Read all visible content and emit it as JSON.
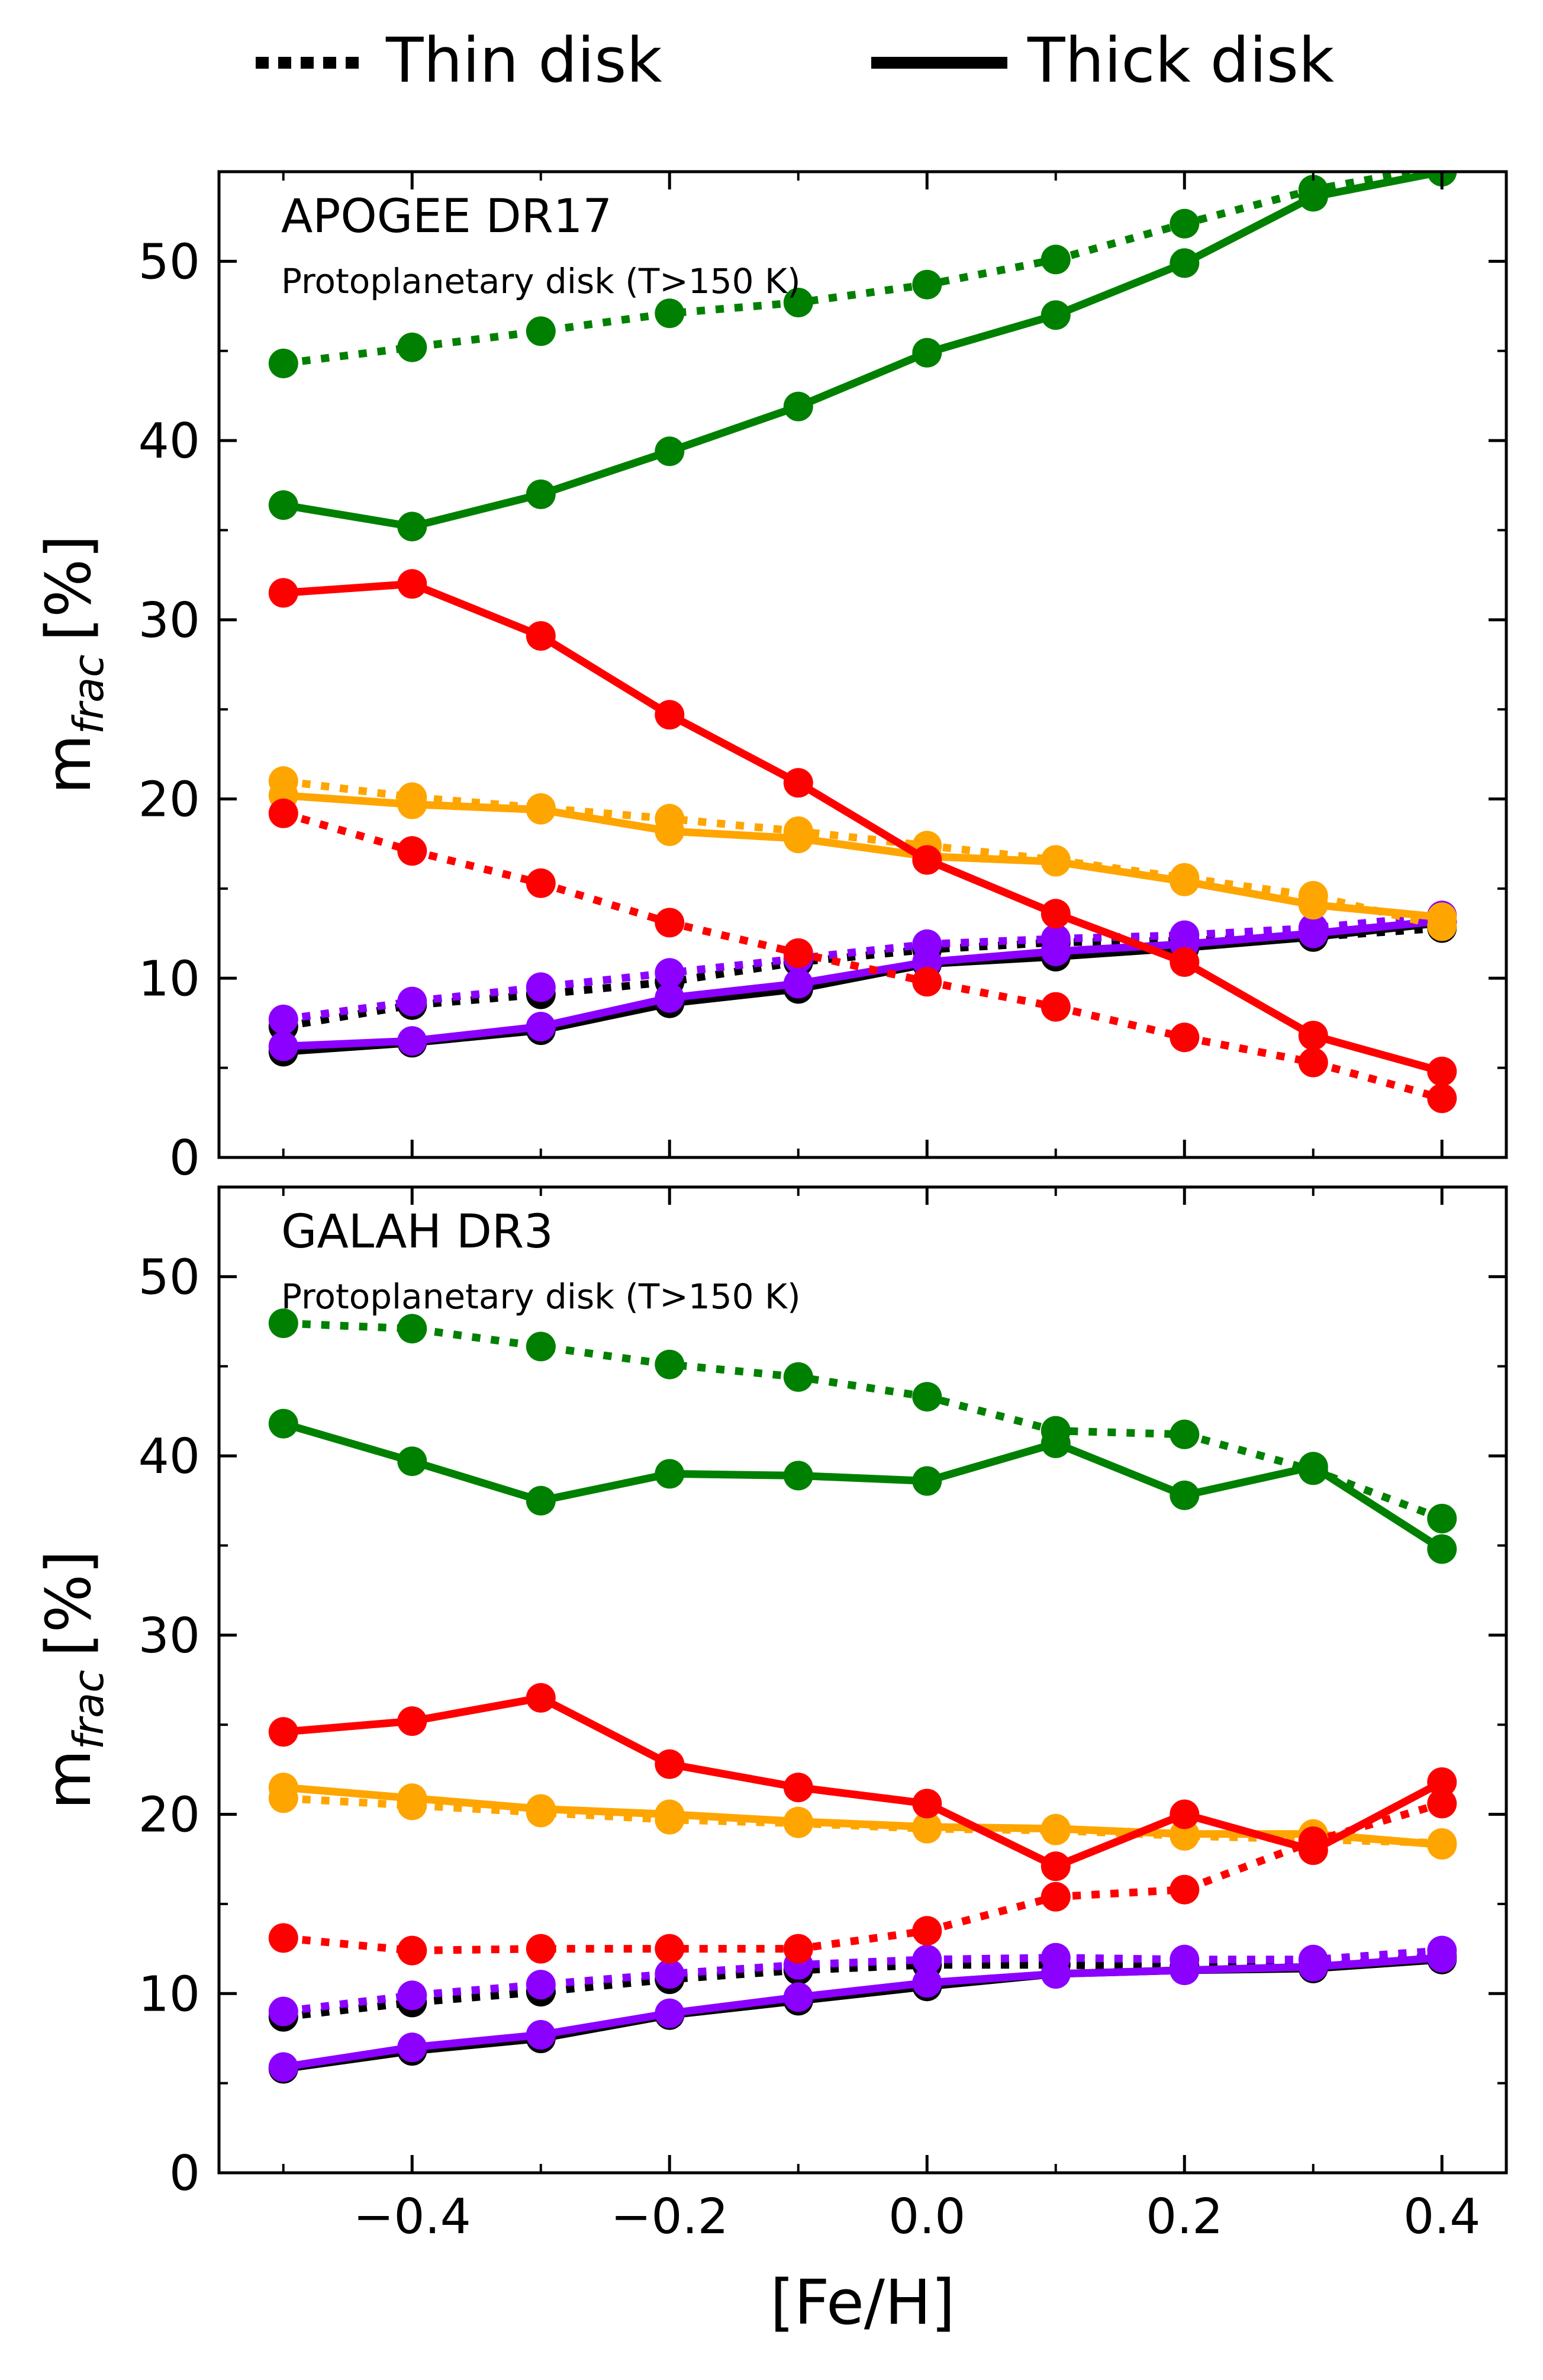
{
  "legend": {
    "thin_label": "Thin disk",
    "thick_label": "Thick disk"
  },
  "colors": {
    "green": "#008000",
    "red": "#ff0000",
    "orange": "#ffa500",
    "purple": "#8b00ff",
    "black": "#000000"
  },
  "chart_data": [
    {
      "type": "line",
      "title": "APOGEE DR17",
      "subtitle": "Protoplanetary disk (T>150 K)",
      "xlabel": "[Fe/H]",
      "ylabel": "m",
      "ylabel_sub": "frac",
      "ylabel_unit": "[%]",
      "xlim": [
        -0.55,
        0.45
      ],
      "ylim": [
        0,
        55
      ],
      "xticks": [
        -0.4,
        -0.2,
        0.0,
        0.2,
        0.4
      ],
      "xtick_labels": [
        "−0.4",
        "−0.2",
        "0.0",
        "0.2",
        "0.4"
      ],
      "yticks": [
        0,
        10,
        20,
        30,
        40,
        50
      ],
      "yticks_minor": [
        5,
        15,
        25,
        35,
        45
      ],
      "x": [
        -0.5,
        -0.4,
        -0.3,
        -0.2,
        -0.1,
        0.0,
        0.1,
        0.2,
        0.3,
        0.4
      ],
      "series": [
        {
          "color": "black",
          "disk": "thin",
          "values": [
            7.3,
            8.5,
            9.1,
            9.8,
            10.9,
            11.6,
            12.0,
            12.1,
            12.3,
            12.8
          ]
        },
        {
          "color": "black",
          "disk": "thick",
          "values": [
            5.9,
            6.4,
            7.1,
            8.6,
            9.4,
            10.8,
            11.2,
            11.7,
            12.3,
            13.1
          ]
        },
        {
          "color": "purple",
          "disk": "thin",
          "values": [
            7.7,
            8.7,
            9.5,
            10.3,
            11.1,
            11.9,
            12.2,
            12.4,
            12.8,
            13.5
          ]
        },
        {
          "color": "purple",
          "disk": "thick",
          "values": [
            6.2,
            6.5,
            7.3,
            8.9,
            9.7,
            10.9,
            11.5,
            11.9,
            12.5,
            13.2
          ]
        },
        {
          "color": "orange",
          "disk": "thin",
          "values": [
            21.0,
            20.1,
            19.5,
            18.9,
            18.2,
            17.4,
            16.6,
            15.6,
            14.6,
            12.9
          ]
        },
        {
          "color": "orange",
          "disk": "thick",
          "values": [
            20.2,
            19.7,
            19.4,
            18.2,
            17.8,
            16.8,
            16.5,
            15.4,
            14.1,
            13.4
          ]
        },
        {
          "color": "red",
          "disk": "thin",
          "values": [
            19.2,
            17.1,
            15.3,
            13.1,
            11.4,
            9.8,
            8.4,
            6.7,
            5.3,
            3.3
          ]
        },
        {
          "color": "red",
          "disk": "thick",
          "values": [
            31.5,
            32.0,
            29.1,
            24.7,
            20.9,
            16.6,
            13.6,
            10.9,
            6.8,
            4.8
          ]
        },
        {
          "color": "green",
          "disk": "thin",
          "values": [
            44.3,
            45.2,
            46.1,
            47.1,
            47.7,
            48.7,
            50.1,
            52.1,
            54.0,
            55.3
          ]
        },
        {
          "color": "green",
          "disk": "thick",
          "values": [
            36.4,
            35.2,
            37.0,
            39.4,
            41.9,
            44.9,
            47.0,
            49.9,
            53.6,
            55.0
          ]
        }
      ]
    },
    {
      "type": "line",
      "title": "GALAH DR3",
      "subtitle": "Protoplanetary disk (T>150 K)",
      "xlabel": "[Fe/H]",
      "ylabel": "m",
      "ylabel_sub": "frac",
      "ylabel_unit": "[%]",
      "xlim": [
        -0.55,
        0.45
      ],
      "ylim": [
        0,
        55
      ],
      "xticks": [
        -0.4,
        -0.2,
        0.0,
        0.2,
        0.4
      ],
      "xtick_labels": [
        "−0.4",
        "−0.2",
        "0.0",
        "0.2",
        "0.4"
      ],
      "yticks": [
        0,
        10,
        20,
        30,
        40,
        50
      ],
      "yticks_minor": [
        5,
        15,
        25,
        35,
        45
      ],
      "x": [
        -0.5,
        -0.4,
        -0.3,
        -0.2,
        -0.1,
        0.0,
        0.1,
        0.2,
        0.3,
        0.4
      ],
      "series": [
        {
          "color": "black",
          "disk": "thin",
          "values": [
            8.7,
            9.5,
            10.1,
            10.8,
            11.3,
            11.6,
            11.6,
            11.5,
            11.5,
            12.1
          ]
        },
        {
          "color": "black",
          "disk": "thick",
          "values": [
            5.8,
            6.8,
            7.5,
            8.8,
            9.6,
            10.4,
            11.1,
            11.3,
            11.4,
            11.9
          ]
        },
        {
          "color": "purple",
          "disk": "thin",
          "values": [
            9.0,
            9.9,
            10.5,
            11.1,
            11.6,
            11.9,
            12.0,
            11.9,
            11.9,
            12.4
          ]
        },
        {
          "color": "purple",
          "disk": "thick",
          "values": [
            5.9,
            7.0,
            7.7,
            8.9,
            9.8,
            10.6,
            11.1,
            11.3,
            11.5,
            12.0
          ]
        },
        {
          "color": "orange",
          "disk": "thin",
          "values": [
            20.9,
            20.5,
            20.1,
            19.7,
            19.5,
            19.2,
            19.1,
            18.8,
            18.6,
            18.4
          ]
        },
        {
          "color": "orange",
          "disk": "thick",
          "values": [
            21.5,
            20.9,
            20.3,
            20.0,
            19.6,
            19.3,
            19.2,
            18.9,
            18.9,
            18.3
          ]
        },
        {
          "color": "red",
          "disk": "thin",
          "values": [
            13.1,
            12.4,
            12.5,
            12.5,
            12.5,
            13.5,
            15.4,
            15.8,
            18.5,
            20.6
          ]
        },
        {
          "color": "red",
          "disk": "thick",
          "values": [
            24.6,
            25.2,
            26.5,
            22.8,
            21.5,
            20.6,
            17.1,
            20.0,
            18.0,
            21.8
          ]
        },
        {
          "color": "green",
          "disk": "thin",
          "values": [
            47.4,
            47.1,
            46.1,
            45.1,
            44.4,
            43.3,
            41.4,
            41.2,
            39.2,
            36.5
          ]
        },
        {
          "color": "green",
          "disk": "thick",
          "values": [
            41.8,
            39.7,
            37.5,
            39.0,
            38.9,
            38.6,
            40.7,
            37.8,
            39.4,
            34.8
          ]
        }
      ]
    }
  ]
}
